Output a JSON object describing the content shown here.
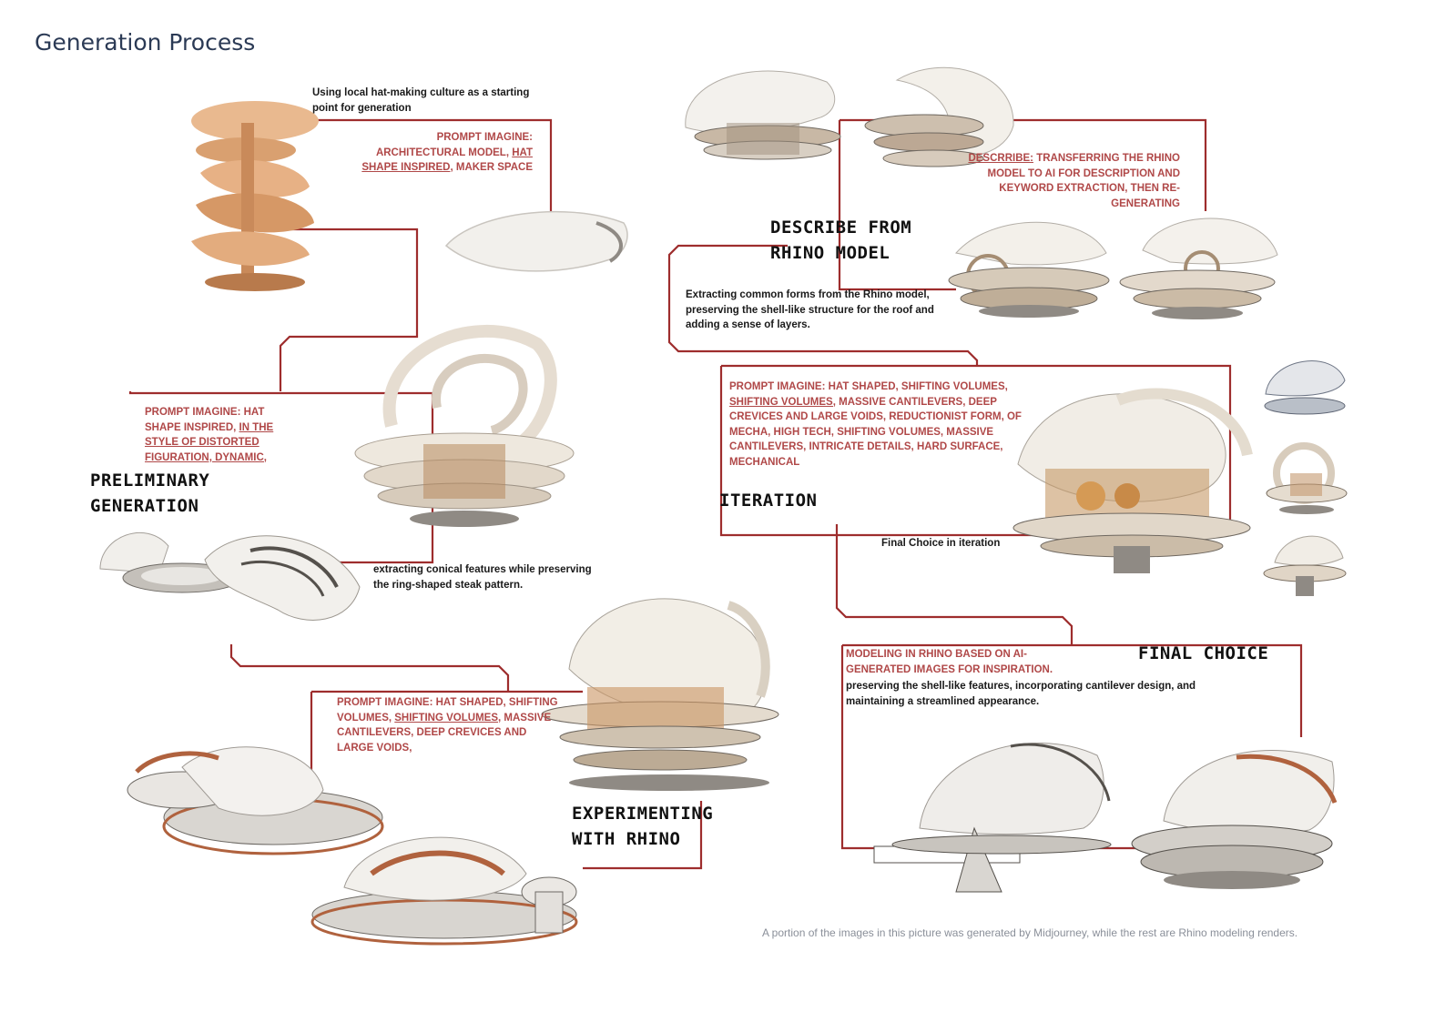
{
  "title": "Generation Process",
  "colors": {
    "connector": "#9e2d2d",
    "prompt_text": "#b04848",
    "render_light": "#f2efe9",
    "render_wood": "#c98a5a",
    "render_shadow": "#8f8a84"
  },
  "stages": {
    "preliminary": "PRELIMINARY\nGENERATION",
    "describe": "DESCRIBE FROM\nRHINO MODEL",
    "iteration": "ITERATION",
    "experimenting": "EXPERIMENTING\nWITH RHINO",
    "final": "FINAL CHOICE"
  },
  "notes": {
    "start": "Using local hat-making culture as a starting point for generation",
    "conical": "extracting conical features while preserving the ring-shaped steak pattern.",
    "extracting": "Extracting common forms from the Rhino model, preserving the shell-like structure for the roof and adding a sense of layers.",
    "final_choice_iteration": "Final Choice in iteration",
    "preserving": "preserving the shell-like features, incorporating cantilever design, and maintaining a streamlined appearance."
  },
  "prompts": {
    "p1": {
      "a": "PROMPT IMAGINE:",
      "b": "ARCHITECTURAL MODEL, ",
      "c": "HAT",
      "d": "SHAPE INSPIRED",
      "e": ", MAKER SPACE"
    },
    "p2": {
      "a": "PROMPT IMAGINE: HAT SHAPE INSPIRED, ",
      "b": "IN THE STYLE OF DISTORTED FIGURATION, DYNAMIC,"
    },
    "describe": {
      "a": "DESCRRIBE:",
      "b": " TRANSFERRING THE RHINO MODEL TO AI FOR DESCRIPTION AND KEYWORD EXTRACTION, THEN RE-GENERATING"
    },
    "iteration": {
      "a": "PROMPT IMAGINE:  HAT SHAPED,  SHIFTING VOLUMES, ",
      "b": "SHIFTING VOLUMES,",
      "c": " MASSIVE CANTILEVERS, DEEP CREVICES AND LARGE VOIDS, REDUCTIONIST FORM, OF MECHA, HIGH TECH, SHIFTING VOLUMES, MASSIVE CANTILEVERS, INTRICATE DETAILS, HARD SURFACE, MECHANICAL"
    },
    "experimenting": {
      "a": "PROMPT IMAGINE:  HAT SHAPED, SHIFTING VOLUMES, ",
      "b": "SHIFTING VOLUMES,",
      "c": " MASSIVE CANTILEVERS, DEEP CREVICES AND LARGE VOIDS,"
    },
    "final": "MODELING IN RHINO BASED ON AI-GENERATED IMAGES FOR INSPIRATION."
  },
  "footer": "A portion of the images in this picture was generated by Midjourney, while the rest are Rhino modeling renders."
}
